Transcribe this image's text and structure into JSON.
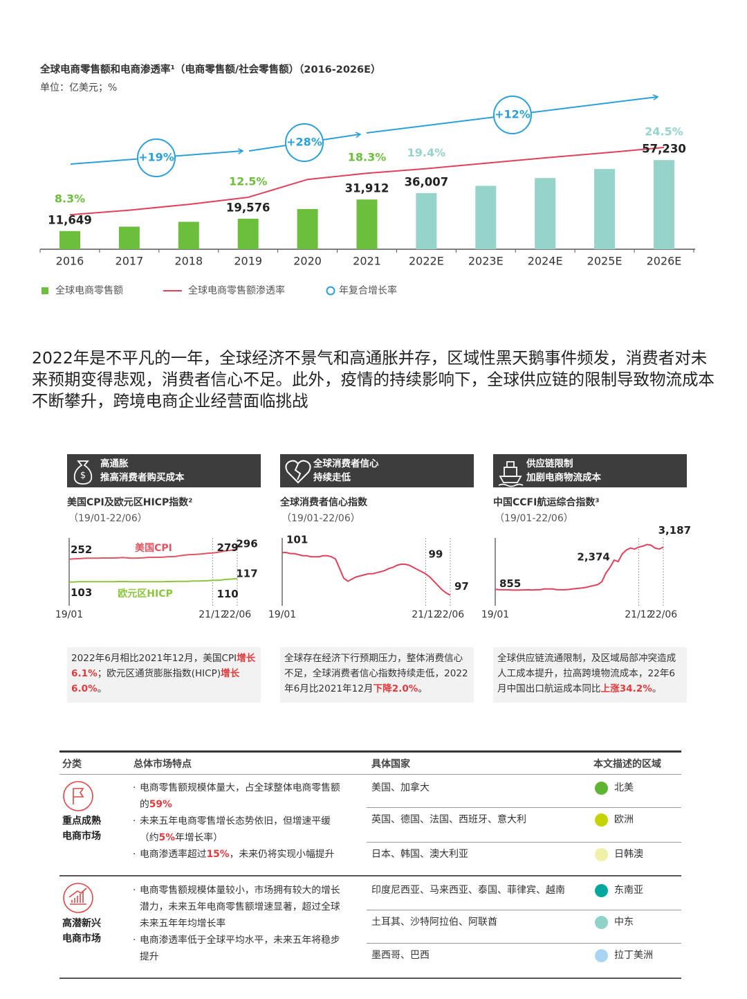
{
  "chart_data": [
    {
      "type": "bar",
      "title": "全球电商零售额和电商渗透率¹（电商零售额/社会零售额）（2016-2026E）",
      "subtitle": "单位：亿美元；%",
      "categories": [
        "2016",
        "2017",
        "2018",
        "2019",
        "2020",
        "2021",
        "2022E",
        "2023E",
        "2024E",
        "2025E",
        "2026E"
      ],
      "ylim": [
        0,
        80000
      ],
      "y2lim": [
        0,
        30
      ],
      "series": [
        {
          "name": "全球电商零售额",
          "type": "bar",
          "colors": [
            "#6cbf3c",
            "#6cbf3c",
            "#6cbf3c",
            "#6cbf3c",
            "#6cbf3c",
            "#6cbf3c",
            "#95d3cb",
            "#95d3cb",
            "#95d3cb",
            "#95d3cb",
            "#95d3cb"
          ],
          "values": [
            11649,
            14500,
            17600,
            19576,
            25800,
            31912,
            36007,
            40700,
            45700,
            51500,
            57230
          ],
          "value_labels": [
            "11,649",
            null,
            null,
            "19,576",
            null,
            "31,912",
            "36,007",
            null,
            null,
            null,
            "57,230"
          ]
        },
        {
          "name": "全球电商零售额渗透率",
          "type": "line",
          "axis": "y2",
          "color": "#e0405a",
          "values": [
            8.3,
            9.4,
            10.8,
            12.5,
            16.8,
            18.3,
            19.4,
            20.7,
            22.0,
            23.2,
            24.5
          ],
          "value_labels": [
            "8.3%",
            null,
            null,
            "12.5%",
            null,
            "18.3%",
            "19.4%",
            null,
            null,
            null,
            "24.5%"
          ]
        }
      ],
      "cagr_legend": "年复合增长率",
      "cagr_color": "#2aa0d8",
      "cagr_labels": [
        "+19%",
        "+28%",
        "+12%"
      ]
    },
    {
      "type": "line",
      "title": "美国CPI及欧元区HICP指数²",
      "subtitle": "（19/01-22/06）",
      "x": [
        "19/01",
        null,
        null,
        null,
        null,
        null,
        null,
        null,
        null,
        null,
        null,
        null,
        null,
        null,
        null,
        null,
        null,
        null,
        null,
        null,
        null,
        null,
        null,
        null,
        null,
        null,
        null,
        null,
        null,
        null,
        null,
        null,
        null,
        null,
        null,
        "21/12",
        null,
        null,
        null,
        null,
        null,
        "22/06"
      ],
      "ylim": [
        50,
        350
      ],
      "y2lim": [
        0,
        300
      ],
      "series": [
        {
          "name": "美国CPI",
          "color": "#e05561",
          "values": [
            252,
            253,
            254,
            255,
            256,
            256,
            256,
            256,
            257,
            257,
            257,
            257,
            258,
            259,
            258,
            256,
            256,
            257,
            258,
            259,
            260,
            260,
            260,
            261,
            262,
            263,
            264,
            267,
            269,
            271,
            272,
            273,
            274,
            276,
            278,
            279,
            281,
            284,
            288,
            289,
            292,
            296
          ],
          "value_labels": [
            "252",
            null,
            null,
            null,
            null,
            null,
            null,
            null,
            null,
            null,
            null,
            null,
            null,
            null,
            null,
            null,
            null,
            null,
            null,
            null,
            null,
            null,
            null,
            null,
            null,
            null,
            null,
            null,
            null,
            null,
            null,
            null,
            null,
            null,
            null,
            "279",
            null,
            null,
            null,
            null,
            null,
            "296"
          ]
        },
        {
          "name": "欧元区HICP",
          "color": "#8cc63f",
          "axis": "y2",
          "values": [
            103,
            103,
            104,
            104,
            104,
            104,
            104,
            104,
            104,
            104,
            104,
            104,
            105,
            105,
            105,
            104,
            104,
            104,
            104,
            104,
            104,
            104,
            104,
            104,
            105,
            105,
            106,
            106,
            106,
            106,
            107,
            107,
            107,
            108,
            109,
            110,
            110,
            111,
            114,
            115,
            116,
            117
          ],
          "value_labels": [
            "103",
            null,
            null,
            null,
            null,
            null,
            null,
            null,
            null,
            null,
            null,
            null,
            null,
            null,
            null,
            null,
            null,
            null,
            null,
            null,
            null,
            null,
            null,
            null,
            null,
            null,
            null,
            null,
            null,
            null,
            null,
            null,
            null,
            null,
            null,
            "110",
            null,
            null,
            null,
            null,
            null,
            "117"
          ]
        }
      ]
    },
    {
      "type": "line",
      "title": "全球消费者信心指数",
      "subtitle": "（19/01-22/06）",
      "x": [
        "19/01",
        null,
        null,
        null,
        null,
        null,
        null,
        null,
        null,
        null,
        null,
        null,
        null,
        null,
        null,
        null,
        null,
        null,
        null,
        null,
        null,
        null,
        null,
        null,
        null,
        null,
        null,
        null,
        null,
        null,
        null,
        null,
        null,
        null,
        null,
        "21/12",
        null,
        null,
        null,
        null,
        null,
        "22/06"
      ],
      "ylim": [
        96,
        102.5
      ],
      "series": [
        {
          "color": "#e0405a",
          "values": [
            101,
            101,
            100.9,
            100.9,
            100.8,
            100.7,
            100.7,
            100.6,
            100.6,
            100.6,
            100.7,
            100.7,
            100.6,
            100.4,
            99.5,
            98.6,
            98.3,
            98.5,
            98.7,
            98.8,
            98.9,
            99,
            99,
            99.1,
            99.2,
            99.3,
            99.5,
            99.6,
            99.8,
            99.9,
            99.9,
            99.8,
            99.6,
            99.4,
            99.2,
            99,
            98.7,
            98.3,
            97.9,
            97.5,
            97.2,
            97
          ],
          "value_labels": [
            "101",
            null,
            null,
            null,
            null,
            null,
            null,
            null,
            null,
            null,
            null,
            null,
            null,
            null,
            null,
            null,
            null,
            null,
            null,
            null,
            null,
            null,
            null,
            null,
            null,
            null,
            null,
            null,
            null,
            null,
            null,
            null,
            null,
            null,
            null,
            "99",
            null,
            null,
            null,
            null,
            null,
            "97"
          ]
        }
      ]
    },
    {
      "type": "line",
      "title": "中国CCFI航运综合指数³",
      "subtitle": "（19/01-22/06）",
      "x": [
        "19/01",
        null,
        null,
        null,
        null,
        null,
        null,
        null,
        null,
        null,
        null,
        null,
        null,
        null,
        null,
        null,
        null,
        null,
        null,
        null,
        null,
        null,
        null,
        null,
        null,
        null,
        null,
        null,
        null,
        null,
        null,
        null,
        null,
        null,
        null,
        "21/12",
        null,
        null,
        null,
        null,
        null,
        "22/06"
      ],
      "ylim": [
        0,
        3600
      ],
      "series": [
        {
          "color": "#e0405a",
          "values": [
            855,
            840,
            830,
            830,
            820,
            815,
            820,
            825,
            830,
            820,
            830,
            840,
            880,
            870,
            880,
            840,
            830,
            830,
            850,
            880,
            900,
            920,
            950,
            1000,
            1050,
            1100,
            1250,
            1700,
            2000,
            2374,
            2300,
            2700,
            2900,
            3000,
            2950,
            3050,
            3100,
            3187,
            3150,
            3000,
            2950,
            3050
          ],
          "value_labels": [
            "855",
            null,
            null,
            null,
            null,
            null,
            null,
            null,
            null,
            null,
            null,
            null,
            null,
            null,
            null,
            null,
            null,
            null,
            null,
            null,
            null,
            null,
            null,
            null,
            null,
            null,
            null,
            null,
            null,
            "2,374",
            null,
            null,
            null,
            null,
            null,
            null,
            null,
            "3,187",
            null,
            null,
            null,
            null
          ]
        }
      ]
    }
  ],
  "paragraph": "2022年是不平凡的一年，全球经济不景气和高通胀并存，区域性黑天鹅事件频发，消费者对未来预期变得悲观，消费者信心不足。此外，疫情的持续影响下，全球供应链的限制导致物流成本不断攀升，跨境电商企业经营面临挑战",
  "panels": [
    {
      "header": [
        "高通胀",
        "推高消费者购买成本"
      ],
      "description": [
        {
          "text": "2022年6月相比2021年12月，美国CPI"
        },
        {
          "text": "增长6.1%",
          "highlight": true
        },
        {
          "text": "；欧元区通货膨胀指数(HICP)"
        },
        {
          "text": "增长6.0%",
          "highlight": true
        },
        {
          "text": "。"
        }
      ]
    },
    {
      "header": [
        "全球消费者信心",
        "持续走低"
      ],
      "description": [
        {
          "text": "全球存在经济下行预期压力，整体消费信心不足，全球消费者信心指数持续走低，2022年6月比2021年12月"
        },
        {
          "text": "下降2.0%",
          "highlight": true
        },
        {
          "text": "。"
        }
      ]
    },
    {
      "header": [
        "供应链限制",
        "加剧电商物流成本"
      ],
      "description": [
        {
          "text": "全球供应链流通限制，及区域局部冲突造成人工成本提升，拉高跨境物流成本，22年6月中国出口航运成本同比"
        },
        {
          "text": "上涨34.2%",
          "highlight": true
        },
        {
          "text": "。"
        }
      ]
    }
  ],
  "table": {
    "headers": [
      "分类",
      "总体市场特点",
      "具体国家",
      "本文描述的区域"
    ],
    "groups": [
      {
        "category": [
          "重点成熟",
          "电商市场"
        ],
        "features": [
          [
            {
              "text": "电商零售额规模体量大，占全球整体电商零售额的"
            },
            {
              "text": "59%",
              "highlight": true
            }
          ],
          [
            {
              "text": "未来五年电商零售增长态势依旧，但增速平缓（约"
            },
            {
              "text": "5%",
              "highlight": true
            },
            {
              "text": "年增长率）"
            }
          ],
          [
            {
              "text": "电商渗透率超过"
            },
            {
              "text": "15%",
              "highlight": true
            },
            {
              "text": "，未来仍将实现小幅提升"
            }
          ]
        ],
        "rows": [
          {
            "countries": "美国、加拿大",
            "region": "北美",
            "color": "#5db531"
          },
          {
            "countries": "英国、德国、法国、西班牙、意大利",
            "region": "欧洲",
            "color": "#c5d300"
          },
          {
            "countries": "日本、韩国、澳大利亚",
            "region": "日韩澳",
            "color": "#f0f0a6"
          }
        ]
      },
      {
        "category": [
          "高潜新兴",
          "电商市场"
        ],
        "features": [
          [
            {
              "text": "电商零售额规模体量较小，市场拥有较大的增长潜力，未来五年电商零售额增速显著，超过全球未来五年年均增长率"
            }
          ],
          [
            {
              "text": "电商渗透率低于全球平均水平，未来五年将稳步提升"
            }
          ]
        ],
        "rows": [
          {
            "countries": "印度尼西亚、马来西亚、泰国、菲律宾、越南",
            "region": "东南亚",
            "color": "#00a79d"
          },
          {
            "countries": "土耳其、沙特阿拉伯、阿联酋",
            "region": "中东",
            "color": "#8fd3c8"
          },
          {
            "countries": "墨西哥、巴西",
            "region": "拉丁美洲",
            "color": "#a9d5f2"
          }
        ]
      }
    ]
  }
}
